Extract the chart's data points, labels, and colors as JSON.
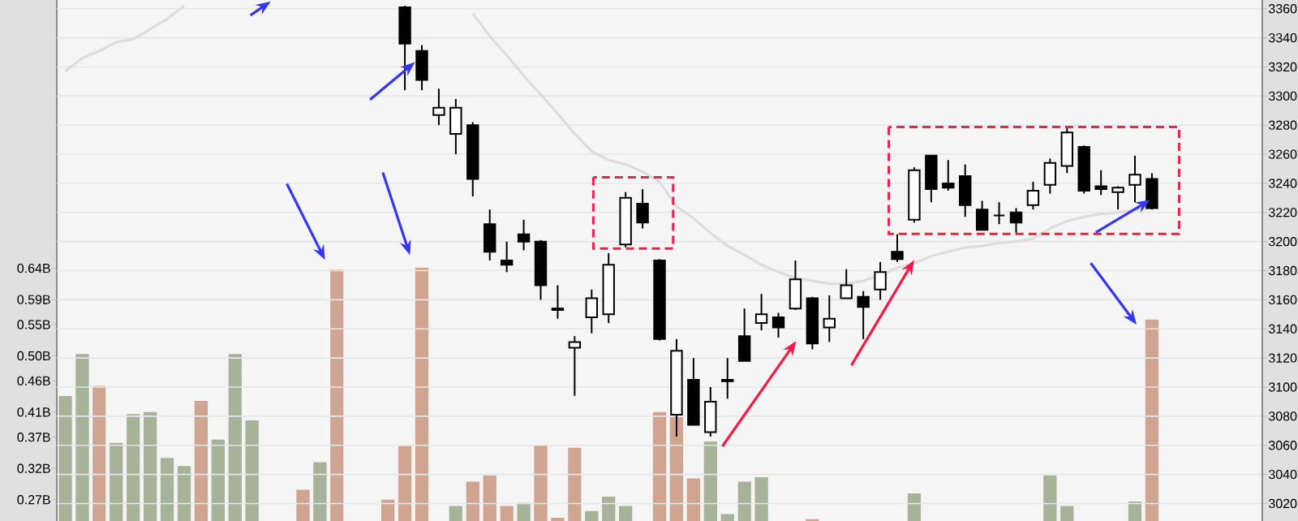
{
  "chart_data": {
    "type": "candlestick",
    "categories": [
      null,
      null,
      null,
      null,
      null,
      null,
      null,
      null,
      null,
      null,
      null,
      null,
      null,
      null,
      null,
      null,
      null,
      null,
      null,
      null,
      null,
      null,
      null,
      null,
      null,
      null,
      null,
      null,
      null,
      null,
      null,
      null,
      null,
      null,
      null,
      null,
      null,
      null,
      null,
      null,
      null,
      null,
      null,
      null,
      null,
      null,
      null,
      null,
      null,
      null,
      null,
      null,
      null,
      null,
      null,
      null,
      null,
      null,
      null,
      null,
      null,
      null,
      null,
      null,
      null,
      null,
      null,
      null,
      null,
      null,
      null
    ],
    "ohlc": [
      null,
      null,
      null,
      null,
      null,
      null,
      null,
      null,
      null,
      null,
      null,
      null,
      null,
      null,
      null,
      null,
      null,
      null,
      null,
      null,
      [
        3361,
        3362,
        3304,
        3336
      ],
      [
        3331,
        3335,
        3304,
        3311
      ],
      [
        3287,
        3305,
        3280,
        3292
      ],
      [
        3274,
        3298,
        3260,
        3292
      ],
      [
        3280,
        3282,
        3231,
        3243
      ],
      [
        3212,
        3222,
        3187,
        3193
      ],
      [
        3187,
        3200,
        3179,
        3184
      ],
      [
        3205,
        3215,
        3194,
        3200
      ],
      [
        3200,
        3201,
        3160,
        3170
      ],
      [
        3154,
        3170,
        3147,
        3153
      ],
      [
        3127,
        3135,
        3094,
        3131
      ],
      [
        3148,
        3167,
        3137,
        3161
      ],
      [
        3150,
        3192,
        3144,
        3184
      ],
      [
        3198,
        3234,
        3196,
        3230
      ],
      [
        3226,
        3236,
        3209,
        3213
      ],
      [
        3187,
        3188,
        3132,
        3133
      ],
      [
        3081,
        3133,
        3066,
        3125
      ],
      [
        3105,
        3120,
        3074,
        3074
      ],
      [
        3069,
        3100,
        3066,
        3090
      ],
      [
        3105,
        3120,
        3092,
        3104
      ],
      [
        3135,
        3154,
        3118,
        3118
      ],
      [
        3144,
        3164,
        3139,
        3150
      ],
      [
        3148,
        3151,
        3134,
        3141
      ],
      [
        3154,
        3187,
        3153,
        3174
      ],
      [
        3161,
        3162,
        3126,
        3130
      ],
      [
        3141,
        3163,
        3131,
        3147
      ],
      [
        3161,
        3181,
        3161,
        3170
      ],
      [
        3162,
        3166,
        3133,
        3155
      ],
      [
        3167,
        3186,
        3160,
        3179
      ],
      [
        3193,
        3205,
        3186,
        3188
      ],
      [
        3215,
        3251,
        3213,
        3249
      ],
      [
        3259,
        3259,
        3227,
        3236
      ],
      [
        3240,
        3256,
        3235,
        3237
      ],
      [
        3245,
        3253,
        3217,
        3225
      ],
      [
        3222,
        3228,
        3208,
        3208
      ],
      [
        3218,
        3227,
        3212,
        3218
      ],
      [
        3220,
        3223,
        3206,
        3213
      ],
      [
        3225,
        3241,
        3222,
        3235
      ],
      [
        3239,
        3257,
        3233,
        3254
      ],
      [
        3252,
        3278,
        3247,
        3275
      ],
      [
        3265,
        3266,
        3233,
        3235
      ],
      [
        3238,
        3249,
        3232,
        3236
      ],
      [
        3234,
        3238,
        3222,
        3237
      ],
      [
        3239,
        3259,
        3227,
        3246
      ],
      [
        3243,
        3247,
        3222,
        3223
      ],
      null,
      null,
      null,
      null,
      null,
      null
    ],
    "series": [
      {
        "type": "bar",
        "axis": "y2",
        "values": [
          0.436,
          0.503,
          0.452,
          0.361,
          0.407,
          0.41,
          0.337,
          0.324,
          0.428,
          0.366,
          0.503,
          0.397,
          null,
          null,
          0.286,
          0.33,
          0.638,
          null,
          null,
          0.27,
          0.356,
          0.641,
          null,
          0.26,
          0.299,
          0.309,
          0.26,
          0.265,
          0.358,
          0.241,
          0.353,
          0.252,
          0.275,
          0.26,
          null,
          0.41,
          0.402,
          0.304,
          0.363,
          0.247,
          0.299,
          0.306,
          null,
          null,
          0.239,
          null,
          null,
          null,
          null,
          null,
          0.28,
          null,
          null,
          null,
          null,
          null,
          null,
          null,
          0.309,
          0.26,
          null,
          null,
          null,
          0.267,
          0.558,
          null,
          null,
          null,
          null,
          null,
          null
        ],
        "colors": [
          "#a6b399",
          "#a6b399",
          "#cfa592",
          "#a6b399",
          "#a6b399",
          "#a6b399",
          "#a6b399",
          "#a6b399",
          "#cfa592",
          "#a6b399",
          "#a6b399",
          "#a6b399",
          null,
          null,
          "#cfa592",
          "#a6b399",
          "#cfa592",
          null,
          null,
          "#cfa592",
          "#cfa592",
          "#cfa592",
          null,
          "#a6b399",
          "#cfa592",
          "#cfa592",
          "#cfa592",
          "#a6b399",
          "#cfa592",
          "#cfa592",
          "#cfa592",
          "#a6b399",
          "#a6b399",
          "#a6b399",
          null,
          "#cfa592",
          "#cfa592",
          "#cfa592",
          "#a6b399",
          "#a6b399",
          "#a6b399",
          "#a6b399",
          null,
          null,
          "#cfa592",
          null,
          null,
          null,
          null,
          null,
          "#a6b399",
          null,
          null,
          null,
          null,
          null,
          null,
          null,
          "#a6b399",
          "#a6b399",
          null,
          null,
          null,
          "#a6b399",
          "#cfa592",
          null,
          null,
          null,
          null,
          null,
          null
        ]
      },
      {
        "type": "line",
        "color": "#dddddd",
        "values": [
          3317,
          3326,
          3331,
          3337,
          3339,
          3346,
          3353,
          3362,
          null,
          null,
          null,
          null,
          null,
          null,
          null,
          null,
          null,
          null,
          null,
          null,
          null,
          null,
          null,
          null,
          3357,
          3341,
          3328,
          3314,
          3301,
          3288,
          3274,
          3262,
          3256,
          3253,
          3248,
          3241,
          3224,
          3216,
          3206,
          3197,
          3191,
          3184,
          3179,
          3175,
          3173,
          3171,
          3171,
          3173,
          3177,
          3182,
          3185,
          3190,
          3193,
          3196,
          3197,
          3199,
          3200,
          3202,
          3209,
          3214,
          3217,
          3219,
          3220,
          3222,
          3223,
          null,
          null,
          null,
          null,
          null,
          null
        ]
      }
    ],
    "ylim": [
      3008,
      3366
    ],
    "yticks": [
      3020,
      3040,
      3060,
      3080,
      3100,
      3120,
      3140,
      3160,
      3180,
      3200,
      3220,
      3240,
      3260,
      3280,
      3300,
      3320,
      3340,
      3360
    ],
    "y2lim": [
      0.236,
      1.069
    ],
    "y2ticks": [
      {
        "value": 0.27,
        "label": "0.27B"
      },
      {
        "value": 0.32,
        "label": "0.32B"
      },
      {
        "value": 0.37,
        "label": "0.37B"
      },
      {
        "value": 0.41,
        "label": "0.41B"
      },
      {
        "value": 0.46,
        "label": "0.46B"
      },
      {
        "value": 0.5,
        "label": "0.50B"
      },
      {
        "value": 0.55,
        "label": "0.55B"
      },
      {
        "value": 0.59,
        "label": "0.59B"
      },
      {
        "value": 0.64,
        "label": "0.64B"
      }
    ],
    "grid": "y"
  }
}
